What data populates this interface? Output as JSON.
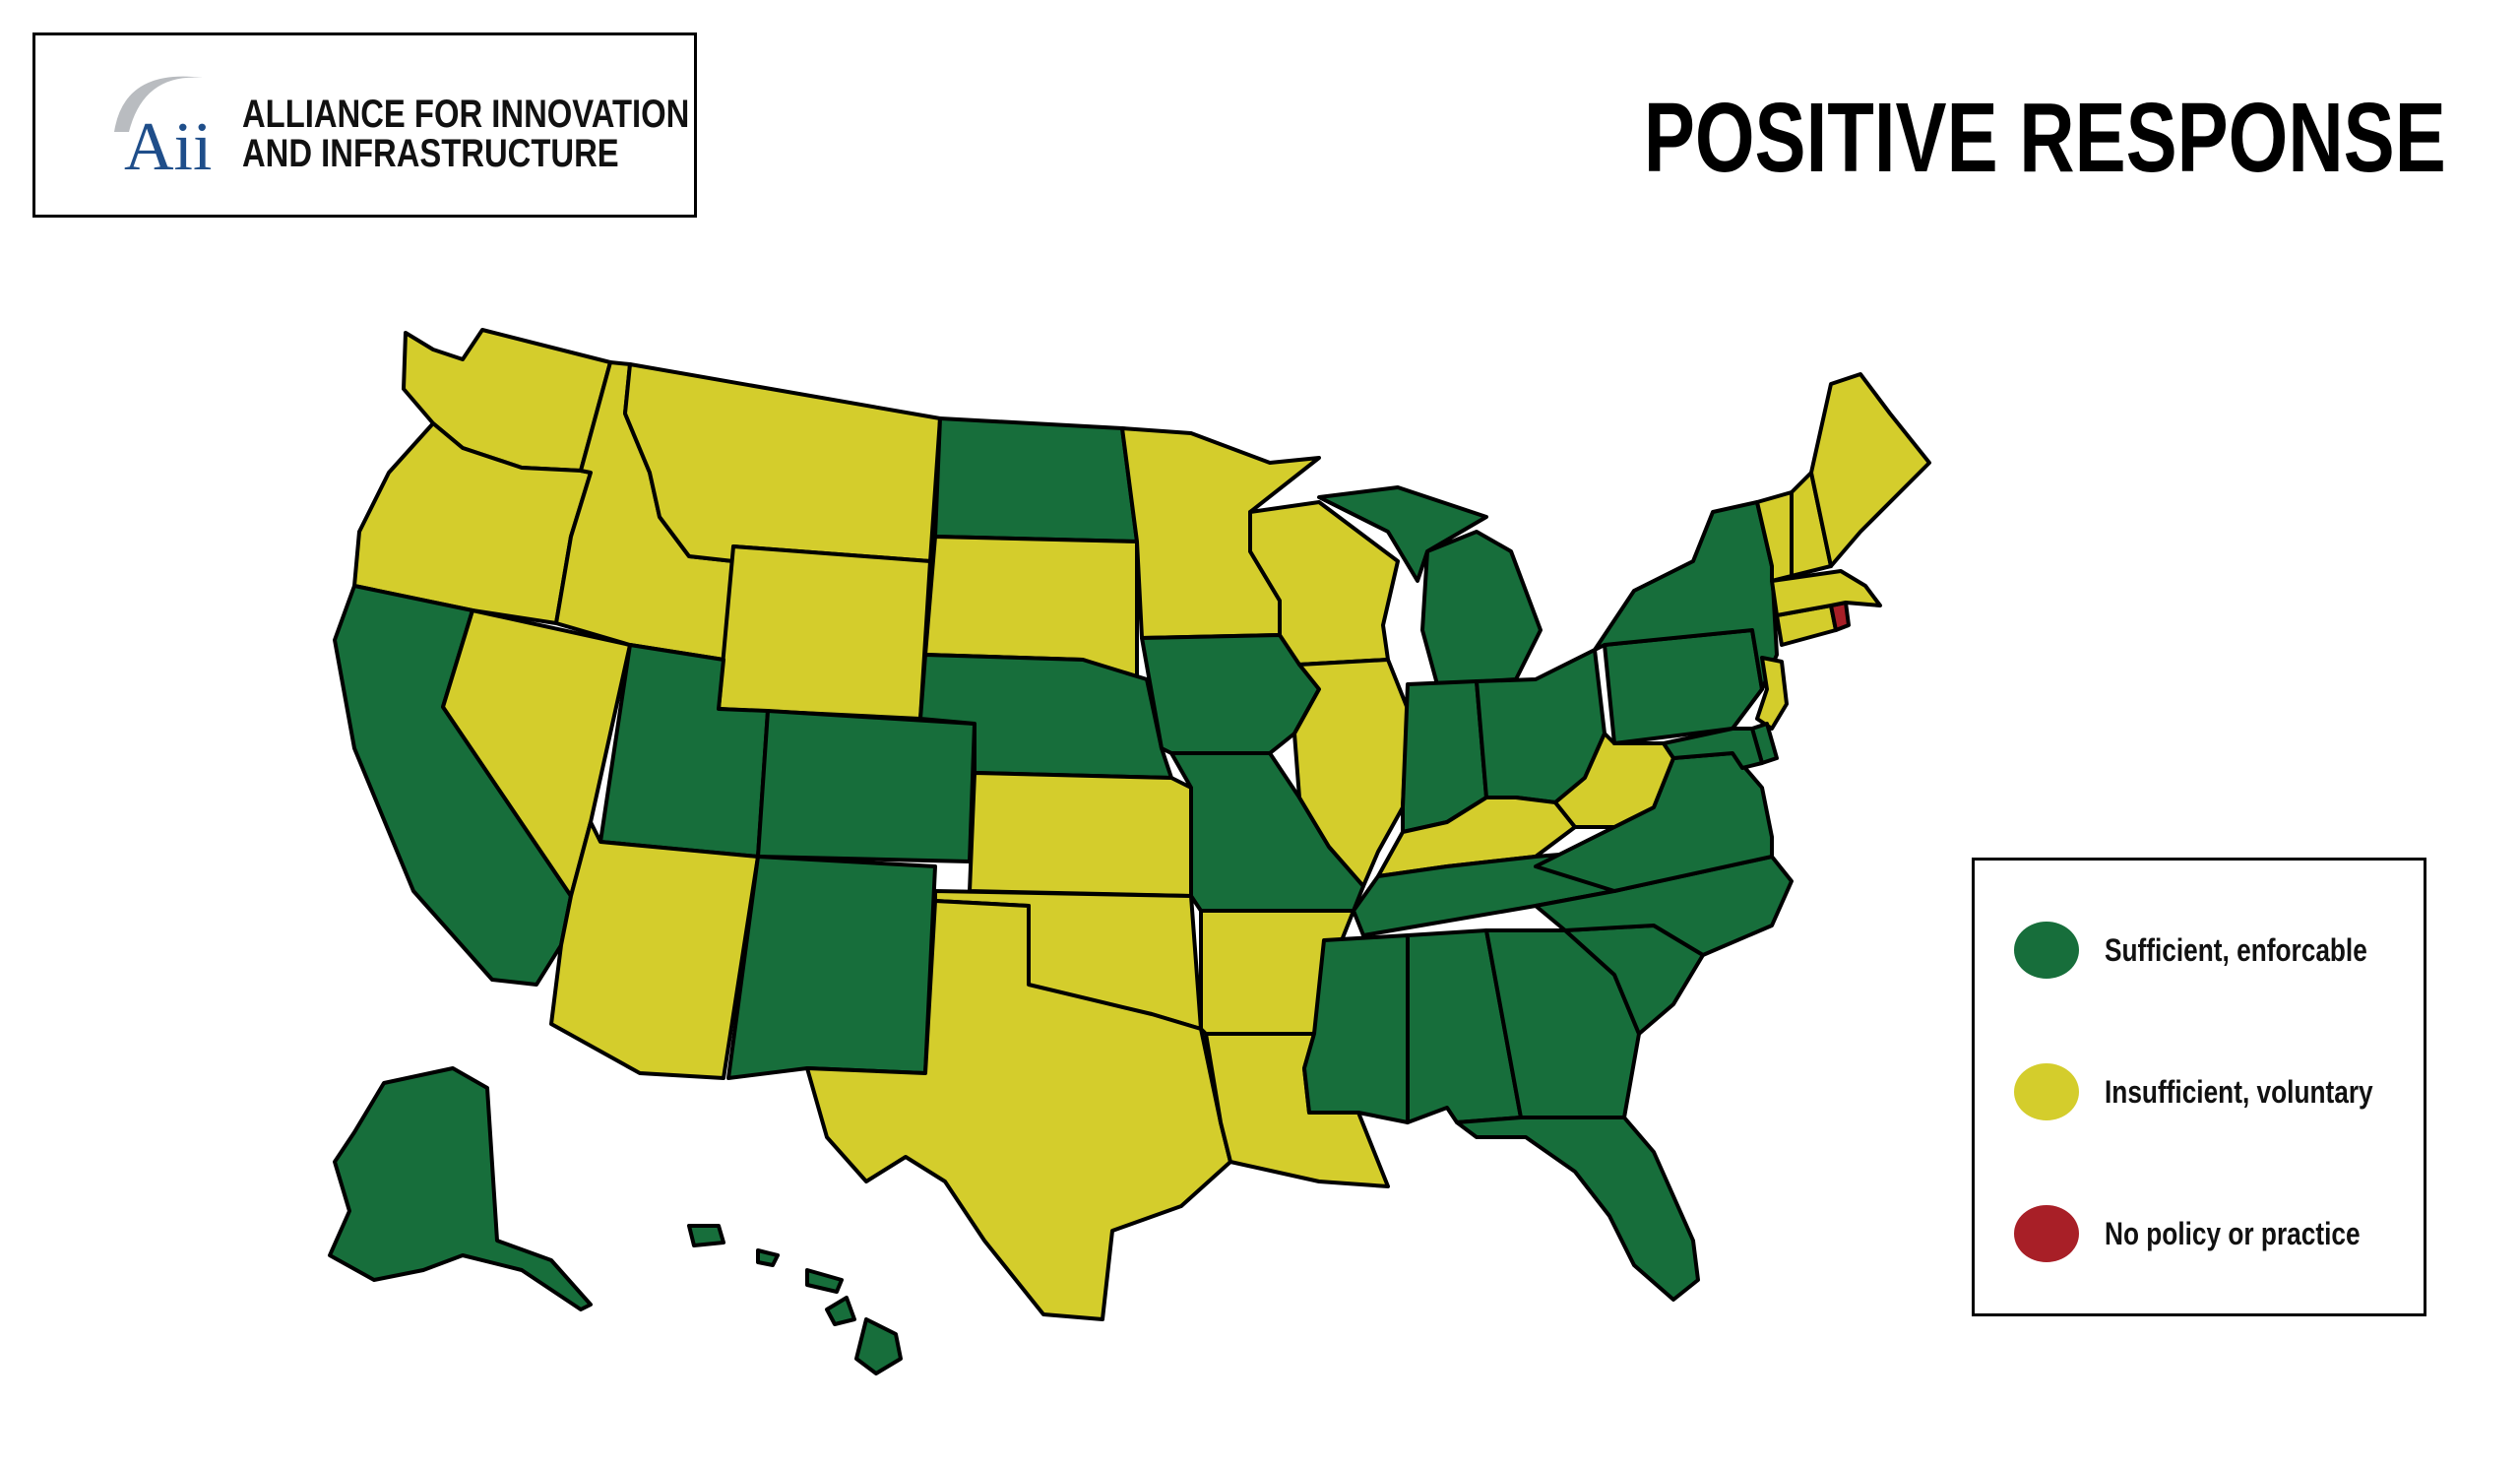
{
  "header": {
    "logo_mark": "Aii",
    "logo_line1": "ALLIANCE FOR INNOVATION",
    "logo_line2": "AND INFRASTRUCTURE",
    "title": "POSITIVE RESPONSE"
  },
  "colors": {
    "sufficient": "#176e3b",
    "insufficient": "#d4cd2c",
    "none": "#a81f27",
    "border": "#000000"
  },
  "legend": [
    {
      "key": "sufficient",
      "label": "Sufficient, enforcable"
    },
    {
      "key": "insufficient",
      "label": "Insufficient, voluntary"
    },
    {
      "key": "none",
      "label": "No policy or practice"
    }
  ],
  "states": {
    "WA": "insufficient",
    "OR": "insufficient",
    "CA": "sufficient",
    "NV": "insufficient",
    "ID": "insufficient",
    "MT": "insufficient",
    "WY": "insufficient",
    "UT": "sufficient",
    "AZ": "insufficient",
    "CO": "sufficient",
    "NM": "sufficient",
    "ND": "sufficient",
    "SD": "insufficient",
    "NE": "sufficient",
    "KS": "insufficient",
    "OK": "insufficient",
    "TX": "insufficient",
    "MN": "insufficient",
    "IA": "sufficient",
    "MO": "sufficient",
    "AR": "insufficient",
    "LA": "insufficient",
    "WI": "insufficient",
    "IL": "insufficient",
    "MI": "sufficient",
    "IN": "sufficient",
    "OH": "sufficient",
    "KY": "insufficient",
    "TN": "sufficient",
    "MS": "sufficient",
    "AL": "sufficient",
    "GA": "sufficient",
    "FL": "sufficient",
    "SC": "sufficient",
    "NC": "sufficient",
    "VA": "sufficient",
    "WV": "insufficient",
    "PA": "sufficient",
    "NY": "sufficient",
    "NJ": "insufficient",
    "DE": "sufficient",
    "MD": "sufficient",
    "CT": "insufficient",
    "RI": "none",
    "MA": "insufficient",
    "VT": "insufficient",
    "NH": "insufficient",
    "ME": "insufficient",
    "AK": "sufficient",
    "HI": "sufficient"
  }
}
